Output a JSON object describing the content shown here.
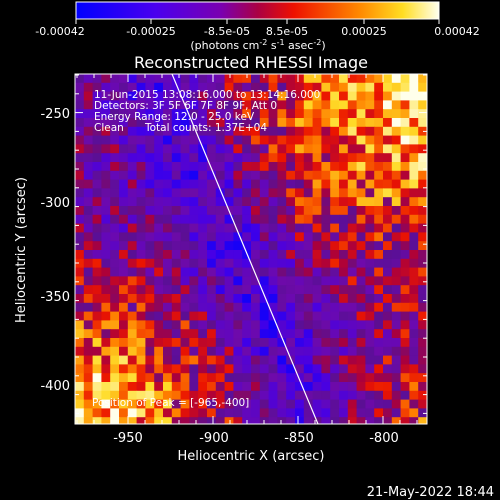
{
  "colorbar": {
    "tick_labels": [
      "-0.00042",
      "-0.00025",
      "-8.5e-05",
      "8.5e-05",
      "0.00025",
      "0.00042"
    ],
    "units_main": "(photons cm",
    "units_exp1": "-2",
    "units_s": " s",
    "units_exp2": "-1",
    "units_asec": " asec",
    "units_exp3": "-2",
    "units_end": ")"
  },
  "plot": {
    "title": "Reconstructed RHESSI Image",
    "xlabel": "Heliocentric X (arcsec)",
    "ylabel": "Heliocentric Y (arcsec)",
    "x_ticks": [
      "-950",
      "-900",
      "-850",
      "-800"
    ],
    "y_ticks": [
      "-250",
      "-300",
      "-350",
      "-400"
    ],
    "xlim": [
      -977,
      -787
    ],
    "ylim": [
      -420,
      -232
    ]
  },
  "annotations": {
    "time": "11-Jun-2015 13:08:16.000 to 13:14:16.000",
    "detectors": "Detectors: 3F 5F 6F 7F 8F 9F, Att 0",
    "energy": "Energy Range: 12.0 - 25.0 keV",
    "method": "Clean",
    "counts": "Total counts: 1.37E+04",
    "peak": "Position of Peak = [-965,-400]"
  },
  "footer": {
    "timestamp": "21-May-2022 18:44"
  }
}
